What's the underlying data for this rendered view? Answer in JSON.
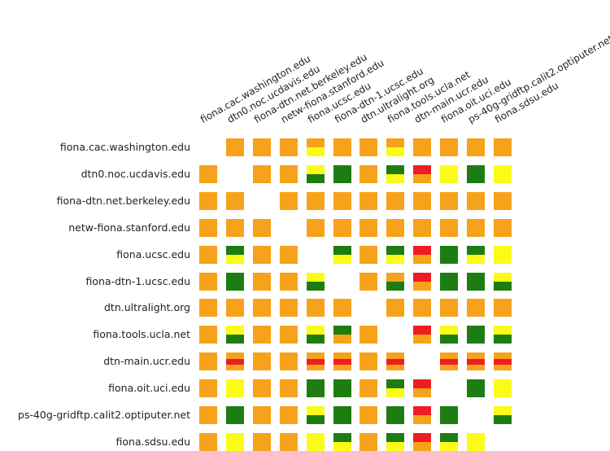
{
  "matrix": {
    "hosts": [
      "fiona.cac.washington.edu",
      "dtn0.noc.ucdavis.edu",
      "fiona-dtn.net.berkeley.edu",
      "netw-fiona.stanford.edu",
      "fiona.ucsc.edu",
      "fiona-dtn-1.ucsc.edu",
      "dtn.ultralight.org",
      "fiona.tools.ucla.net",
      "dtn-main.ucr.edu",
      "fiona.oit.uci.edu",
      "ps-40g-gridftp.calit2.optiputer.net",
      "fiona.sdsu.edu"
    ],
    "status_colors": {
      "O": "#f7a21b",
      "Y": "#fbfb19",
      "G": "#1e7d12",
      "R": "#ee1c24"
    },
    "cells": [
      [
        "",
        "O",
        "O",
        "O",
        "OY",
        "O",
        "O",
        "OY",
        "O",
        "O",
        "O",
        "O"
      ],
      [
        "O",
        "",
        "O",
        "O",
        "YG",
        "G",
        "O",
        "GY",
        "RO",
        "Y",
        "G",
        "Y"
      ],
      [
        "O",
        "O",
        "",
        "O",
        "O",
        "O",
        "O",
        "O",
        "O",
        "O",
        "O",
        "O"
      ],
      [
        "O",
        "O",
        "O",
        "",
        "O",
        "O",
        "O",
        "O",
        "O",
        "O",
        "O",
        "O"
      ],
      [
        "O",
        "GY",
        "O",
        "O",
        "",
        "GY",
        "O",
        "GY",
        "RO",
        "G",
        "GY",
        "Y"
      ],
      [
        "O",
        "G",
        "O",
        "O",
        "YG",
        "",
        "O",
        "OG",
        "RO",
        "G",
        "G",
        "YG"
      ],
      [
        "O",
        "O",
        "O",
        "O",
        "O",
        "O",
        "",
        "O",
        "O",
        "O",
        "O",
        "O"
      ],
      [
        "O",
        "YG",
        "O",
        "O",
        "YG",
        "GO",
        "O",
        "",
        "RO",
        "YG",
        "G",
        "YG"
      ],
      [
        "O",
        "ORO",
        "O",
        "O",
        "ORO",
        "ORO",
        "O",
        "ORO",
        "",
        "ORO",
        "ORO",
        "ORO"
      ],
      [
        "O",
        "Y",
        "O",
        "O",
        "G",
        "G",
        "O",
        "GY",
        "RO",
        "",
        "G",
        "Y"
      ],
      [
        "O",
        "G",
        "O",
        "O",
        "YG",
        "G",
        "O",
        "G",
        "RO",
        "G",
        "",
        "YG"
      ],
      [
        "O",
        "Y",
        "O",
        "O",
        "Y",
        "GY",
        "O",
        "GY",
        "RO",
        "GY",
        "Y",
        ""
      ]
    ]
  }
}
